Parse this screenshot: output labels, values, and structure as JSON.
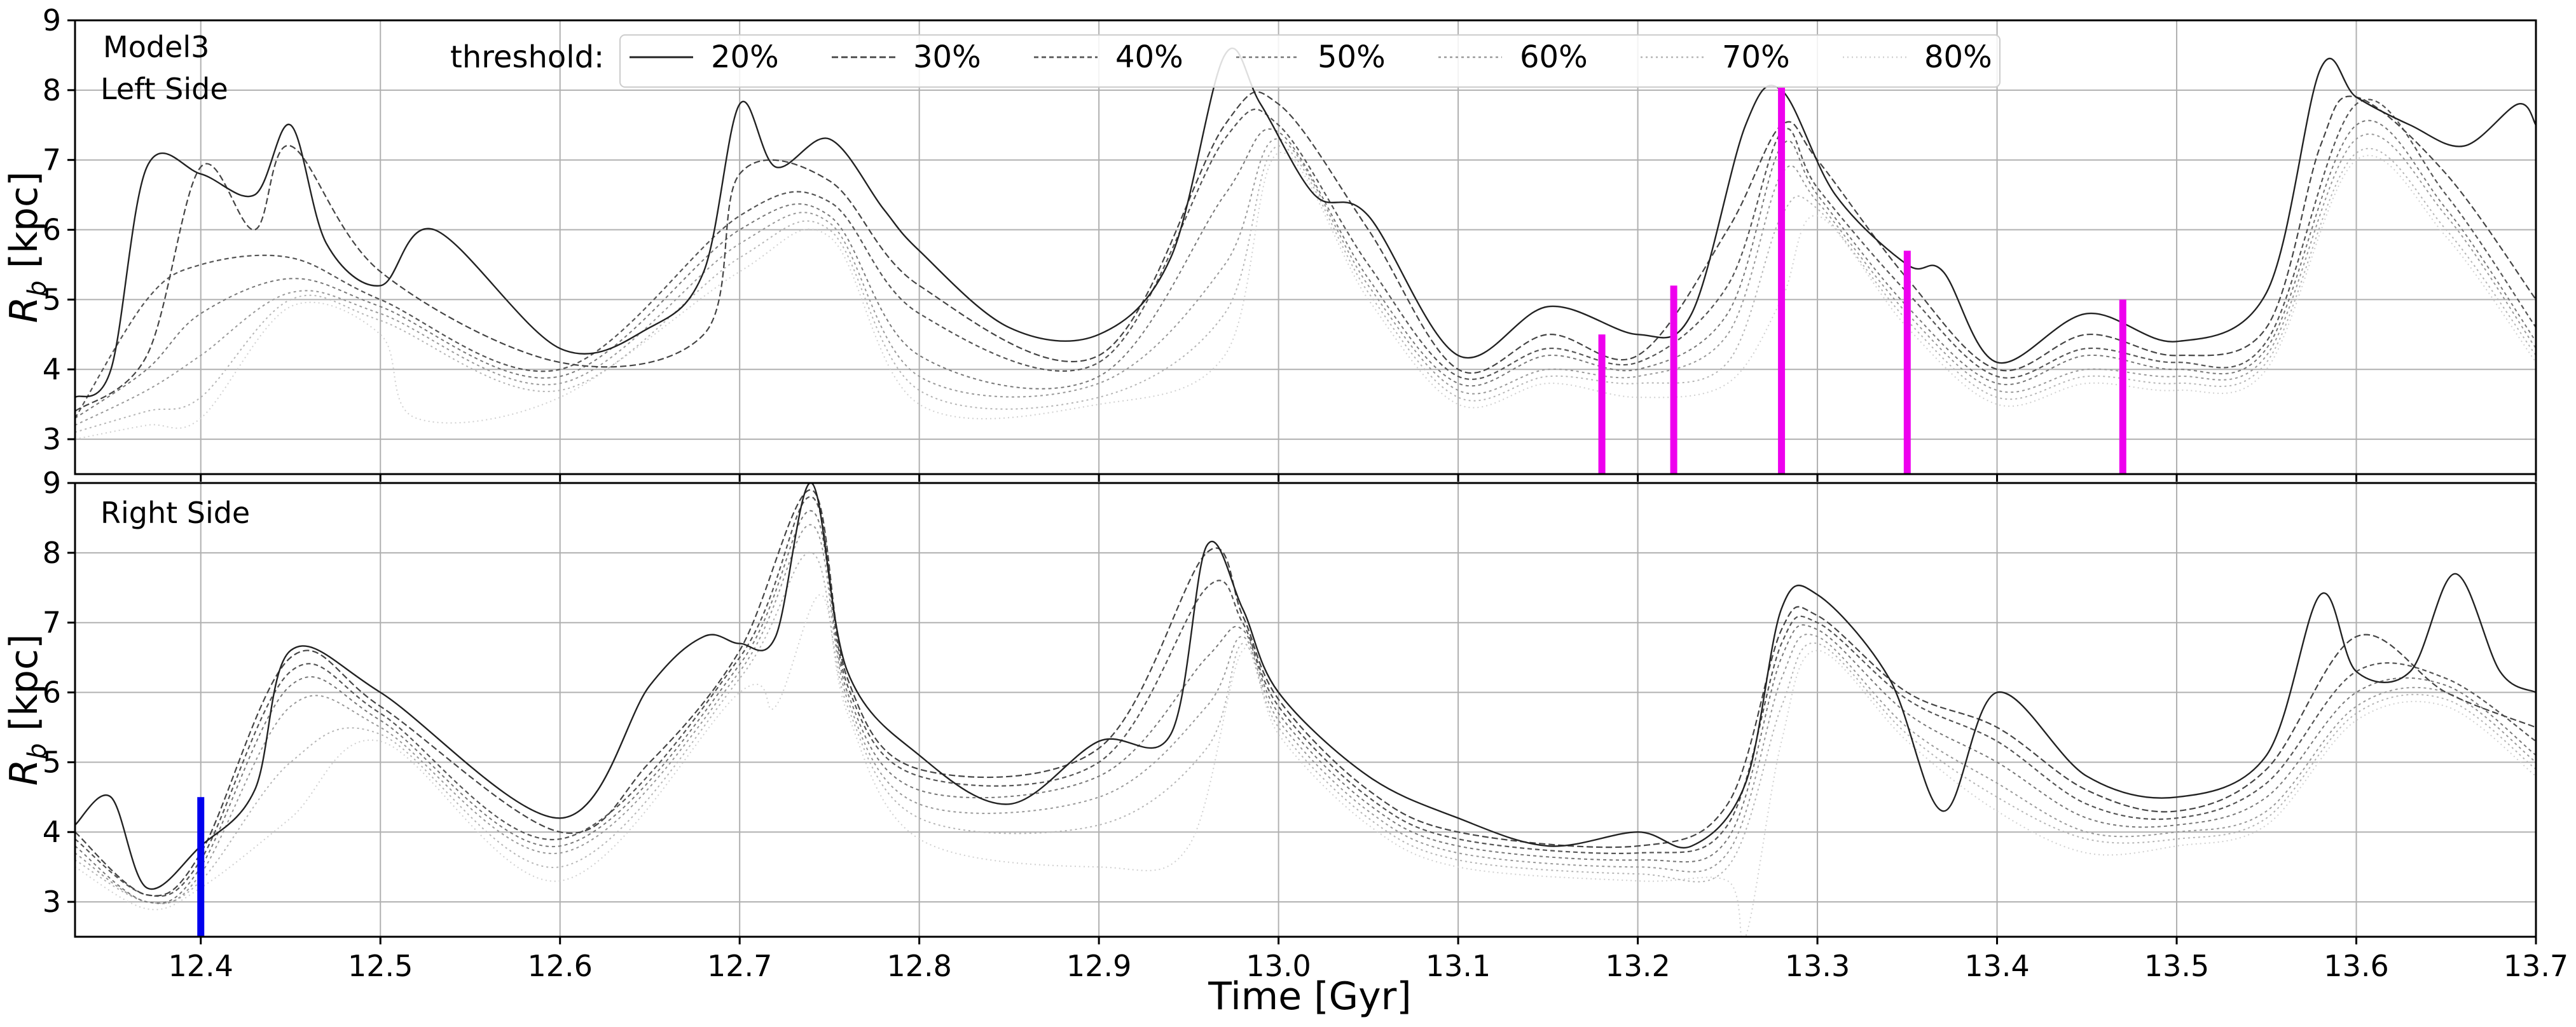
{
  "chart_data": [
    {
      "type": "line",
      "panel": "top",
      "annotations": [
        "Model3",
        "Left Side"
      ],
      "ylabel": "R_b [kpc]",
      "ylim": [
        2.5,
        9
      ],
      "xlim": [
        12.33,
        13.7
      ],
      "grid": true,
      "legend": {
        "title": "threshold:",
        "entries": [
          "20%",
          "30%",
          "40%",
          "50%",
          "60%",
          "70%",
          "80%"
        ],
        "placement": "top-center",
        "line_colors": [
          "#222222",
          "#444444",
          "#555555",
          "#777777",
          "#999999",
          "#b5b5b5",
          "#d0d0d0"
        ]
      },
      "series": [
        {
          "name": "20%",
          "x": [
            12.33,
            12.35,
            12.37,
            12.4,
            12.43,
            12.45,
            12.47,
            12.5,
            12.53,
            12.6,
            12.65,
            12.68,
            12.7,
            12.72,
            12.75,
            12.78,
            12.8,
            12.85,
            12.9,
            12.94,
            12.97,
            12.99,
            13.02,
            13.05,
            13.1,
            13.15,
            13.2,
            13.23,
            13.26,
            13.28,
            13.31,
            13.35,
            13.37,
            13.4,
            13.45,
            13.5,
            13.55,
            13.58,
            13.6,
            13.63,
            13.66,
            13.69,
            13.7
          ],
          "y": [
            3.6,
            4.0,
            6.9,
            6.8,
            6.5,
            7.5,
            5.8,
            5.2,
            6.0,
            4.3,
            4.6,
            5.4,
            7.8,
            6.9,
            7.3,
            6.3,
            5.7,
            4.6,
            4.5,
            5.6,
            8.5,
            7.8,
            6.5,
            6.2,
            4.2,
            4.9,
            4.5,
            4.8,
            7.5,
            8.0,
            6.5,
            5.5,
            5.4,
            4.1,
            4.8,
            4.4,
            5.1,
            8.3,
            7.9,
            7.5,
            7.2,
            7.8,
            7.5
          ]
        },
        {
          "name": "30%",
          "x": [
            12.33,
            12.37,
            12.4,
            12.43,
            12.45,
            12.5,
            12.6,
            12.68,
            12.7,
            12.75,
            12.8,
            12.9,
            12.97,
            13.0,
            13.05,
            13.1,
            13.15,
            13.2,
            13.25,
            13.28,
            13.3,
            13.35,
            13.4,
            13.45,
            13.5,
            13.55,
            13.58,
            13.6,
            13.65,
            13.7
          ],
          "y": [
            3.4,
            4.2,
            6.9,
            6.0,
            7.2,
            5.4,
            4.1,
            4.5,
            6.8,
            6.7,
            5.2,
            4.2,
            7.5,
            7.8,
            6.0,
            4.0,
            4.5,
            4.2,
            6.0,
            7.5,
            7.0,
            5.3,
            4.0,
            4.5,
            4.2,
            4.6,
            7.2,
            7.9,
            6.8,
            5.0
          ]
        },
        {
          "name": "40%",
          "x": [
            12.33,
            12.37,
            12.4,
            12.45,
            12.5,
            12.6,
            12.7,
            12.75,
            12.8,
            12.9,
            12.97,
            13.0,
            13.05,
            13.1,
            13.15,
            13.2,
            13.25,
            13.28,
            13.3,
            13.35,
            13.4,
            13.45,
            13.5,
            13.55,
            13.6,
            13.65,
            13.7
          ],
          "y": [
            3.3,
            5.0,
            5.5,
            5.6,
            5.0,
            4.0,
            6.2,
            6.4,
            4.8,
            4.1,
            7.3,
            7.5,
            5.5,
            3.9,
            4.3,
            4.1,
            5.2,
            7.4,
            6.6,
            5.1,
            3.9,
            4.3,
            4.1,
            4.4,
            7.8,
            6.5,
            4.6
          ]
        },
        {
          "name": "50%",
          "x": [
            12.33,
            12.37,
            12.4,
            12.45,
            12.5,
            12.6,
            12.7,
            12.75,
            12.8,
            12.9,
            12.97,
            13.0,
            13.05,
            13.1,
            13.15,
            13.2,
            13.25,
            13.28,
            13.3,
            13.35,
            13.4,
            13.45,
            13.5,
            13.55,
            13.6,
            13.65,
            13.7
          ],
          "y": [
            3.3,
            4.0,
            4.8,
            5.3,
            4.9,
            3.9,
            6.0,
            6.2,
            4.2,
            3.9,
            6.5,
            7.4,
            5.3,
            3.8,
            4.2,
            4.0,
            4.8,
            7.2,
            6.5,
            4.9,
            3.8,
            4.2,
            4.0,
            4.3,
            7.5,
            6.3,
            4.4
          ]
        },
        {
          "name": "60%",
          "x": [
            12.33,
            12.37,
            12.4,
            12.45,
            12.5,
            12.6,
            12.7,
            12.75,
            12.8,
            12.9,
            12.97,
            13.0,
            13.05,
            13.1,
            13.15,
            13.2,
            13.25,
            13.28,
            13.3,
            13.35,
            13.4,
            13.45,
            13.5,
            13.55,
            13.6,
            13.65,
            13.7
          ],
          "y": [
            3.2,
            3.7,
            4.2,
            5.1,
            4.8,
            3.8,
            5.8,
            6.1,
            3.9,
            3.8,
            5.5,
            7.3,
            5.2,
            3.7,
            4.0,
            3.9,
            4.5,
            6.8,
            6.4,
            4.8,
            3.7,
            4.0,
            3.9,
            4.2,
            7.3,
            6.2,
            4.3
          ]
        },
        {
          "name": "70%",
          "x": [
            12.33,
            12.37,
            12.4,
            12.45,
            12.5,
            12.6,
            12.7,
            12.75,
            12.8,
            12.9,
            12.97,
            13.0,
            13.05,
            13.1,
            13.15,
            13.2,
            13.25,
            13.28,
            13.3,
            13.35,
            13.4,
            13.45,
            13.5,
            13.55,
            13.6,
            13.65,
            13.7
          ],
          "y": [
            3.1,
            3.4,
            3.6,
            5.0,
            4.7,
            3.7,
            5.6,
            6.0,
            3.7,
            3.6,
            4.8,
            7.2,
            5.1,
            3.6,
            3.9,
            3.8,
            4.1,
            6.2,
            6.3,
            4.7,
            3.6,
            3.9,
            3.8,
            4.1,
            7.1,
            6.0,
            4.2
          ]
        },
        {
          "name": "80%",
          "x": [
            12.33,
            12.37,
            12.4,
            12.45,
            12.5,
            12.52,
            12.6,
            12.7,
            12.75,
            12.8,
            12.9,
            12.97,
            13.0,
            13.05,
            13.1,
            13.15,
            13.2,
            13.25,
            13.28,
            13.3,
            13.35,
            13.4,
            13.45,
            13.5,
            13.55,
            13.6,
            13.65,
            13.7
          ],
          "y": [
            3.0,
            3.2,
            3.3,
            4.9,
            4.5,
            3.3,
            3.6,
            5.4,
            5.9,
            3.5,
            3.5,
            4.2,
            7.1,
            5.0,
            3.5,
            3.8,
            3.6,
            3.8,
            5.0,
            6.2,
            4.6,
            3.5,
            3.8,
            3.7,
            4.0,
            7.0,
            5.9,
            4.1
          ]
        }
      ],
      "markers": {
        "color": "#ee00ee",
        "x": [
          13.18,
          13.22,
          13.28,
          13.35,
          13.47
        ],
        "top": [
          4.5,
          5.2,
          8.05,
          5.7,
          5.0
        ]
      }
    },
    {
      "type": "line",
      "panel": "bottom",
      "annotations": [
        "Right Side"
      ],
      "xlabel": "Time [Gyr]",
      "ylabel": "R_b [kpc]",
      "ylim": [
        2.5,
        9
      ],
      "xlim": [
        12.33,
        13.7
      ],
      "grid": true,
      "x_ticks": [
        12.4,
        12.5,
        12.6,
        12.7,
        12.8,
        12.9,
        13.0,
        13.1,
        13.2,
        13.3,
        13.4,
        13.5,
        13.6,
        13.7
      ],
      "series": [
        {
          "name": "20%",
          "x": [
            12.33,
            12.35,
            12.37,
            12.4,
            12.43,
            12.45,
            12.5,
            12.6,
            12.65,
            12.68,
            12.7,
            12.72,
            12.74,
            12.76,
            12.8,
            12.85,
            12.9,
            12.94,
            12.96,
            12.98,
            13.0,
            13.05,
            13.1,
            13.15,
            13.2,
            13.23,
            13.26,
            13.28,
            13.3,
            13.34,
            13.37,
            13.4,
            13.45,
            13.5,
            13.55,
            13.58,
            13.6,
            13.63,
            13.655,
            13.68,
            13.7
          ],
          "y": [
            4.1,
            4.5,
            3.2,
            3.8,
            4.6,
            6.6,
            6.0,
            4.2,
            6.1,
            6.8,
            6.7,
            6.8,
            9.0,
            6.3,
            5.1,
            4.4,
            5.3,
            5.4,
            8.1,
            7.2,
            6.0,
            4.8,
            4.2,
            3.8,
            4.0,
            3.8,
            4.7,
            7.2,
            7.4,
            6.2,
            4.3,
            6.0,
            4.8,
            4.5,
            5.1,
            7.4,
            6.3,
            6.3,
            7.7,
            6.3,
            6.0
          ]
        },
        {
          "name": "30%",
          "x": [
            12.33,
            12.37,
            12.4,
            12.45,
            12.5,
            12.6,
            12.65,
            12.7,
            12.74,
            12.76,
            12.8,
            12.9,
            12.96,
            12.98,
            13.0,
            13.05,
            13.1,
            13.2,
            13.25,
            13.28,
            13.3,
            13.35,
            13.4,
            13.45,
            13.5,
            13.55,
            13.6,
            13.65,
            13.7
          ],
          "y": [
            4.0,
            3.1,
            3.7,
            6.5,
            5.8,
            4.0,
            5.0,
            6.6,
            8.9,
            6.2,
            4.9,
            5.2,
            8.0,
            7.1,
            5.9,
            4.6,
            4.0,
            3.8,
            4.4,
            6.9,
            7.1,
            6.0,
            5.5,
            4.6,
            4.3,
            4.9,
            6.8,
            6.0,
            5.5
          ]
        },
        {
          "name": "40%",
          "x": [
            12.33,
            12.37,
            12.4,
            12.45,
            12.5,
            12.6,
            12.7,
            12.74,
            12.76,
            12.8,
            12.9,
            12.96,
            12.98,
            13.0,
            13.05,
            13.1,
            13.2,
            13.25,
            13.28,
            13.3,
            13.35,
            13.4,
            13.45,
            13.5,
            13.55,
            13.6,
            13.65,
            13.7
          ],
          "y": [
            3.9,
            3.1,
            3.6,
            6.3,
            5.7,
            3.9,
            6.5,
            8.8,
            6.1,
            4.8,
            5.0,
            7.5,
            7.0,
            5.8,
            4.5,
            3.9,
            3.7,
            4.1,
            6.7,
            7.0,
            5.9,
            5.3,
            4.4,
            4.2,
            4.7,
            6.3,
            6.2,
            5.3
          ]
        },
        {
          "name": "50%",
          "x": [
            12.33,
            12.37,
            12.4,
            12.45,
            12.5,
            12.6,
            12.7,
            12.74,
            12.76,
            12.8,
            12.9,
            12.96,
            12.98,
            13.0,
            13.05,
            13.1,
            13.2,
            13.25,
            13.28,
            13.3,
            13.35,
            13.4,
            13.45,
            13.5,
            13.55,
            13.6,
            13.65,
            13.7
          ],
          "y": [
            3.8,
            3.0,
            3.5,
            6.1,
            5.6,
            3.8,
            6.4,
            8.6,
            6.0,
            4.6,
            4.8,
            6.5,
            6.9,
            5.7,
            4.4,
            3.8,
            3.6,
            3.9,
            6.5,
            6.9,
            5.7,
            5.0,
            4.2,
            4.1,
            4.5,
            6.0,
            6.1,
            5.1
          ]
        },
        {
          "name": "60%",
          "x": [
            12.33,
            12.37,
            12.4,
            12.45,
            12.5,
            12.6,
            12.7,
            12.74,
            12.76,
            12.8,
            12.9,
            12.96,
            12.98,
            13.0,
            13.05,
            13.1,
            13.2,
            13.25,
            13.28,
            13.3,
            13.35,
            13.4,
            13.45,
            13.5,
            13.55,
            13.6,
            13.65,
            13.7
          ],
          "y": [
            3.7,
            3.0,
            3.4,
            5.8,
            5.5,
            3.7,
            6.3,
            8.4,
            5.9,
            4.4,
            4.5,
            5.8,
            6.8,
            5.6,
            4.3,
            3.7,
            3.5,
            3.7,
            6.2,
            6.8,
            5.5,
            4.7,
            4.0,
            4.0,
            4.3,
            5.8,
            6.0,
            5.0
          ]
        },
        {
          "name": "70%",
          "x": [
            12.33,
            12.37,
            12.4,
            12.45,
            12.5,
            12.6,
            12.7,
            12.74,
            12.76,
            12.8,
            12.9,
            12.96,
            12.98,
            13.0,
            13.05,
            13.1,
            13.2,
            13.25,
            13.28,
            13.3,
            13.35,
            13.4,
            13.45,
            13.5,
            13.55,
            13.6,
            13.65,
            13.7
          ],
          "y": [
            3.6,
            3.0,
            3.3,
            5.0,
            5.4,
            3.5,
            6.2,
            8.0,
            5.8,
            4.2,
            4.1,
            5.2,
            6.7,
            5.5,
            4.2,
            3.6,
            3.4,
            3.5,
            5.8,
            6.7,
            5.4,
            4.5,
            3.9,
            3.9,
            4.2,
            5.7,
            5.9,
            4.9
          ]
        },
        {
          "name": "80%",
          "x": [
            12.33,
            12.37,
            12.4,
            12.45,
            12.5,
            12.6,
            12.7,
            12.72,
            12.745,
            12.76,
            12.8,
            12.9,
            12.95,
            12.98,
            13.0,
            13.05,
            13.1,
            13.2,
            13.25,
            13.26,
            13.28,
            13.3,
            13.35,
            13.4,
            13.45,
            13.5,
            13.55,
            13.6,
            13.65,
            13.7
          ],
          "y": [
            3.5,
            2.9,
            3.2,
            4.2,
            5.3,
            3.3,
            6.0,
            5.8,
            7.4,
            5.7,
            3.9,
            3.5,
            3.8,
            6.6,
            5.4,
            4.1,
            3.5,
            3.3,
            3.3,
            2.5,
            5.3,
            6.6,
            5.3,
            4.3,
            3.7,
            3.8,
            4.1,
            5.6,
            5.8,
            4.8
          ]
        }
      ],
      "markers": {
        "color": "#0000ee",
        "x": [
          12.4
        ],
        "top": [
          4.5
        ]
      }
    }
  ]
}
